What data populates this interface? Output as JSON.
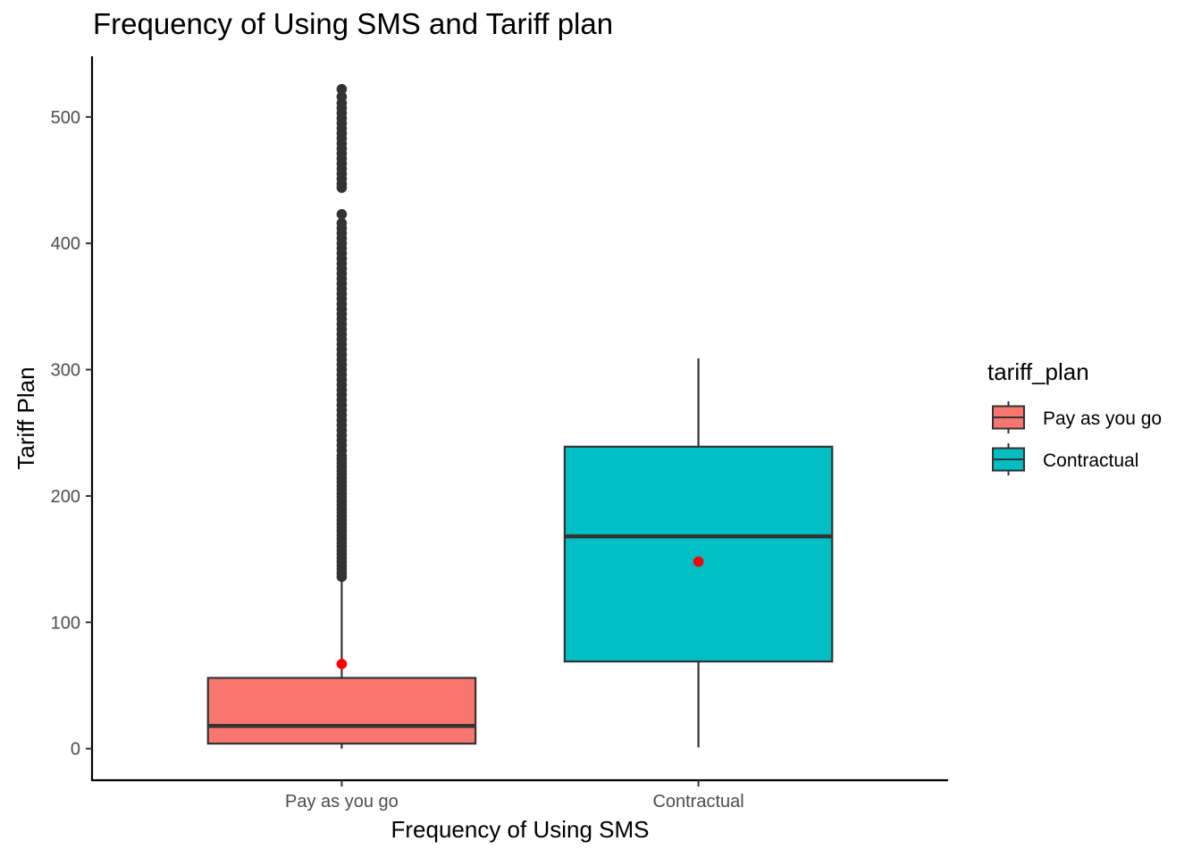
{
  "chart_data": {
    "type": "boxplot",
    "title": "Frequency of Using SMS and Tariff plan",
    "xlabel": "Frequency of Using SMS",
    "ylabel": "Tariff Plan",
    "ylim": [
      -25,
      548
    ],
    "yticks": [
      0,
      100,
      200,
      300,
      400,
      500
    ],
    "grid": false,
    "legend_title": "tariff_plan",
    "legend_position": "right",
    "categories": [
      "Pay as you go",
      "Contractual"
    ],
    "colors": [
      "#F8766D",
      "#00BFC4"
    ],
    "mean_color": "#FF0000",
    "boxes": [
      {
        "name": "Pay as you go",
        "min": 0,
        "q1": 4,
        "median": 18,
        "q3": 56,
        "whisker_high": 134,
        "mean": 67,
        "outliers": [
          136,
          139,
          142,
          145,
          148,
          151,
          154,
          157,
          160,
          163,
          166,
          169,
          172,
          175,
          178,
          181,
          184,
          187,
          190,
          193,
          196,
          199,
          202,
          205,
          208,
          211,
          214,
          217,
          220,
          223,
          226,
          229,
          232,
          236,
          240,
          244,
          248,
          252,
          256,
          260,
          264,
          268,
          272,
          276,
          280,
          284,
          288,
          292,
          296,
          300,
          304,
          308,
          312,
          316,
          320,
          324,
          328,
          332,
          336,
          340,
          344,
          348,
          352,
          356,
          360,
          364,
          368,
          372,
          376,
          380,
          384,
          388,
          392,
          396,
          400,
          404,
          408,
          412,
          416,
          423,
          444,
          447,
          451,
          455,
          459,
          463,
          467,
          471,
          475,
          479,
          483,
          487,
          491,
          495,
          499,
          503,
          507,
          511,
          516,
          522
        ]
      },
      {
        "name": "Contractual",
        "min": 1,
        "q1": 69,
        "median": 168,
        "q3": 239,
        "whisker_high": 309,
        "mean": 148,
        "outliers": []
      }
    ]
  }
}
